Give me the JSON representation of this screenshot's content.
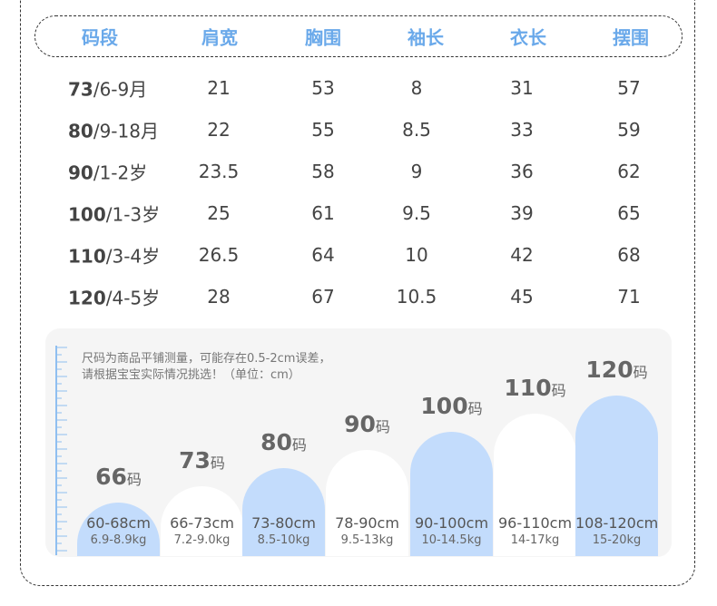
{
  "headers": [
    "码段",
    "肩宽",
    "胸围",
    "袖长",
    "衣长",
    "摆围"
  ],
  "rows": [
    {
      "size": "73",
      "age": "/6-9月",
      "values": [
        "21",
        "53",
        "8",
        "31",
        "57"
      ]
    },
    {
      "size": "80",
      "age": "/9-18月",
      "values": [
        "22",
        "55",
        "8.5",
        "33",
        "59"
      ]
    },
    {
      "size": "90",
      "age": "/1-2岁",
      "values": [
        "23.5",
        "58",
        "9",
        "36",
        "62"
      ]
    },
    {
      "size": "100",
      "age": "/1-3岁",
      "values": [
        "25",
        "61",
        "9.5",
        "39",
        "65"
      ]
    },
    {
      "size": "110",
      "age": "/3-4岁",
      "values": [
        "26.5",
        "64",
        "10",
        "42",
        "68"
      ]
    },
    {
      "size": "120",
      "age": "/4-5岁",
      "values": [
        "28",
        "67",
        "10.5",
        "45",
        "71"
      ]
    }
  ],
  "note": {
    "line1": "尺码为商品平铺测量，可能存在0.5-2cm误差，",
    "line2": "请根据宝宝实际情况挑选！（单位：cm）"
  },
  "size_chart": [
    {
      "num": "66",
      "unit": "码",
      "height_range": "60-68cm",
      "weight_range": "6.9-8.9kg",
      "color": "blue"
    },
    {
      "num": "73",
      "unit": "码",
      "height_range": "66-73cm",
      "weight_range": "7.2-9.0kg",
      "color": "white"
    },
    {
      "num": "80",
      "unit": "码",
      "height_range": "73-80cm",
      "weight_range": "8.5-10kg",
      "color": "blue"
    },
    {
      "num": "90",
      "unit": "码",
      "height_range": "78-90cm",
      "weight_range": "9.5-13kg",
      "color": "white"
    },
    {
      "num": "100",
      "unit": "码",
      "height_range": "90-100cm",
      "weight_range": "10-14.5kg",
      "color": "blue"
    },
    {
      "num": "110",
      "unit": "码",
      "height_range": "96-110cm",
      "weight_range": "14-17kg",
      "color": "white"
    },
    {
      "num": "120",
      "unit": "码",
      "height_range": "108-120cm",
      "weight_range": "15-20kg",
      "color": "blue"
    }
  ],
  "colors": {
    "header_text": "#6aa9ea",
    "arch_blue": "#c3dcfc",
    "ruler": "#8fbff0",
    "panel_bg": "#f5f5f5"
  }
}
